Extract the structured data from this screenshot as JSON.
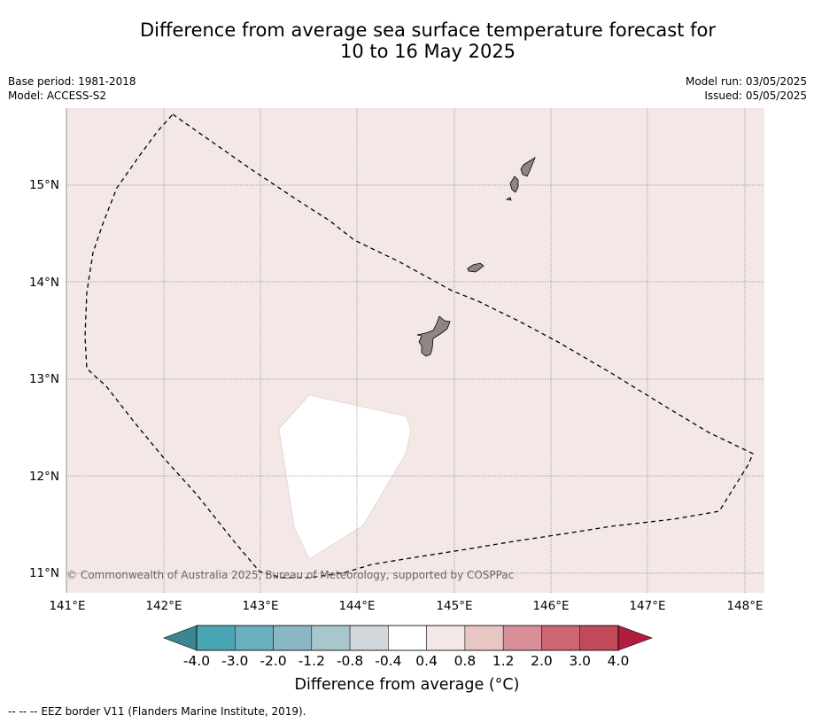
{
  "title_line1": "Difference from average sea surface temperature forecast for",
  "title_line2": "10 to 16 May 2025",
  "meta": {
    "base_period": "Base period: 1981-2018",
    "model": "Model: ACCESS-S2",
    "model_run": "Model run: 03/05/2025",
    "issued": "Issued: 05/05/2025"
  },
  "map": {
    "background_color": "#f4e8e7",
    "land_color": "#8c8785",
    "neutral_color": "#ffffff",
    "lat_labels": [
      "15°N",
      "14°N",
      "13°N",
      "12°N",
      "11°N"
    ],
    "lon_labels": [
      "141°E",
      "142°E",
      "143°E",
      "144°E",
      "145°E",
      "146°E",
      "147°E",
      "148°E"
    ],
    "copyright": "© Commonwealth of Australia 2025, Bureau of Meteorology, supported by COSPPac"
  },
  "colorbar": {
    "colors": [
      "#4aa5b4",
      "#6cb0bf",
      "#8ab7c3",
      "#a8c7cd",
      "#d1d8db",
      "#ffffff",
      "#f4e8e7",
      "#e8c6c3",
      "#d98f99",
      "#cd6572",
      "#c24a5b"
    ],
    "under_color": "#3d8592",
    "over_color": "#b01e3e",
    "labels": [
      "-4.0",
      "-3.0",
      "-2.0",
      "-1.2",
      "-0.8",
      "-0.4",
      "0.4",
      "0.8",
      "1.2",
      "2.0",
      "3.0",
      "4.0"
    ],
    "title": "Difference from average (°C)"
  },
  "footnote": "--  --  -- EEZ border V11 (Flanders Marine Institute, 2019)."
}
